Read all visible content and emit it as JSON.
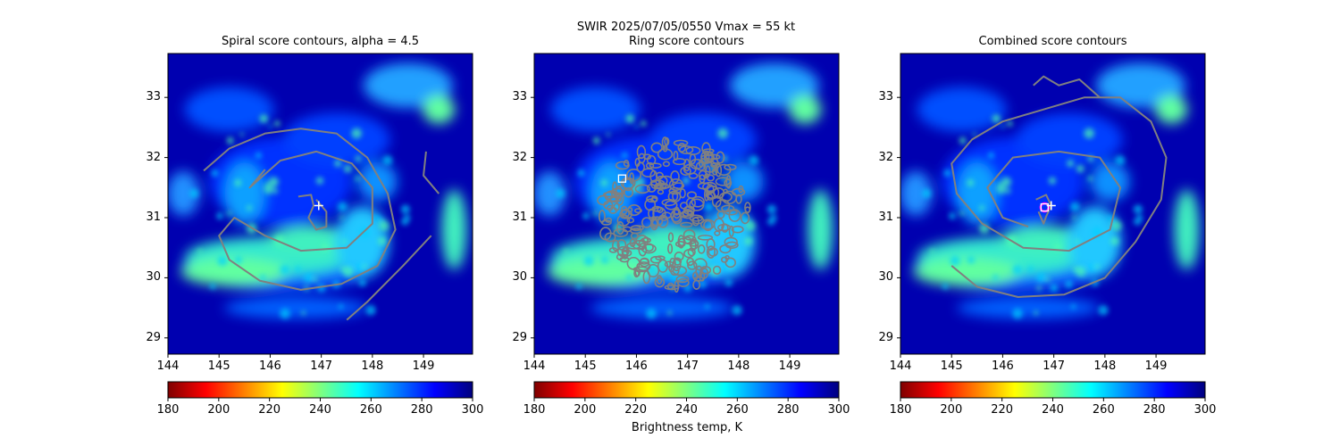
{
  "suptitle": "SWIR  2025/07/05/0550    Vmax = 55 kt",
  "colorbar_label": "Brightness temp, K",
  "colors": {
    "contour": "#808080",
    "marker_white": "#ffffff",
    "marker_magenta": "#ff00ff"
  },
  "chart_data": [
    {
      "type": "heatmap",
      "title": "Spiral score contours, alpha =  4.5",
      "xlim": [
        144,
        149.96
      ],
      "ylim": [
        28.73,
        33.73
      ],
      "xticks": [
        "144",
        "145",
        "146",
        "147",
        "148",
        "149"
      ],
      "yticks": [
        "29",
        "30",
        "31",
        "32",
        "33"
      ],
      "colorbar": {
        "range": [
          180,
          300
        ],
        "ticks": [
          "180",
          "200",
          "220",
          "240",
          "260",
          "280",
          "300"
        ],
        "cmap": "jet_r"
      },
      "markers": [
        {
          "type": "plus",
          "lon": 146.95,
          "lat": 31.2,
          "color": "#ffffff"
        }
      ]
    },
    {
      "type": "heatmap",
      "title": "Ring score contours",
      "xlim": [
        144,
        149.96
      ],
      "ylim": [
        28.73,
        33.73
      ],
      "xticks": [
        "144",
        "145",
        "146",
        "147",
        "148",
        "149"
      ],
      "yticks": [
        "29",
        "30",
        "31",
        "32",
        "33"
      ],
      "colorbar": {
        "range": [
          180,
          300
        ],
        "ticks": [
          "180",
          "200",
          "220",
          "240",
          "260",
          "280",
          "300"
        ],
        "cmap": "jet_r"
      },
      "markers": [
        {
          "type": "square",
          "lon": 145.72,
          "lat": 31.65,
          "color": "#ffffff"
        }
      ]
    },
    {
      "type": "heatmap",
      "title": "Combined score contours",
      "xlim": [
        144,
        149.96
      ],
      "ylim": [
        28.73,
        33.73
      ],
      "xticks": [
        "144",
        "145",
        "146",
        "147",
        "148",
        "149"
      ],
      "yticks": [
        "29",
        "30",
        "31",
        "32",
        "33"
      ],
      "colorbar": {
        "range": [
          180,
          300
        ],
        "ticks": [
          "180",
          "200",
          "220",
          "240",
          "260",
          "280",
          "300"
        ],
        "cmap": "jet_r"
      },
      "markers": [
        {
          "type": "circle",
          "lon": 146.82,
          "lat": 31.17,
          "color": "#ff00ff"
        },
        {
          "type": "square",
          "lon": 146.82,
          "lat": 31.17,
          "color": "#ffffff"
        },
        {
          "type": "plus",
          "lon": 146.95,
          "lat": 31.2,
          "color": "#ffffff"
        }
      ]
    }
  ]
}
